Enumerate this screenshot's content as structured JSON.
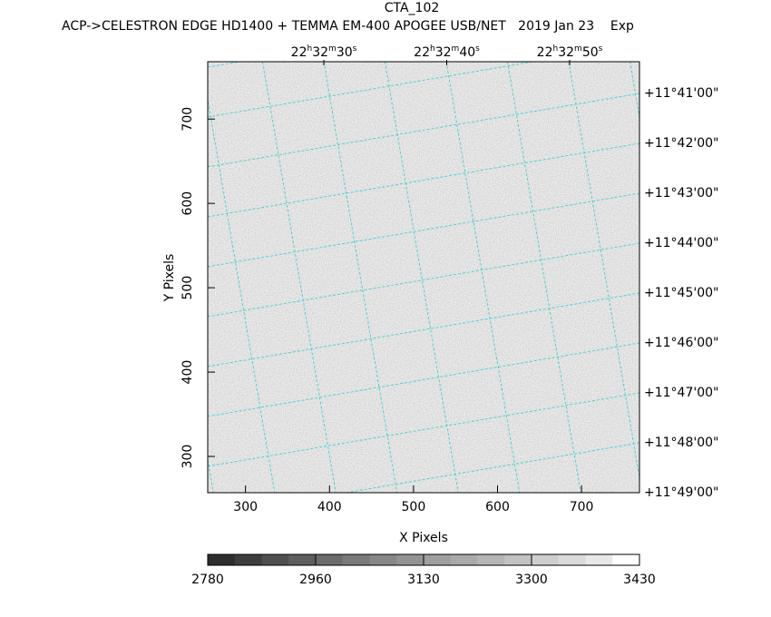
{
  "chart_data": {
    "type": "image",
    "title": "CTA_102",
    "subtitle": "ACP->CELESTRON EDGE HD1400 + TEMMA EM-400 APOGEE USB/NET   2019 Jan 23    Exp",
    "x_label": "X Pixels",
    "y_label": "Y Pixels",
    "xlim": [
      255,
      769
    ],
    "ylim": [
      257,
      768
    ],
    "xticks": [
      300,
      400,
      500,
      600,
      700
    ],
    "yticks": [
      300,
      400,
      500,
      600,
      700
    ],
    "ra_labels": [
      [
        "22",
        "h",
        "32",
        "m",
        "30",
        "s"
      ],
      [
        "22",
        "h",
        "32",
        "m",
        "40",
        "s"
      ],
      [
        "22",
        "h",
        "32",
        "m",
        "50",
        "s"
      ]
    ],
    "dec_labels": [
      "+11°41'00\"",
      "+11°42'00\"",
      "+11°43'00\"",
      "+11°44'00\"",
      "+11°45'00\"",
      "+11°46'00\"",
      "+11°47'00\"",
      "+11°48'00\"",
      "+11°49'00\""
    ],
    "grid_color": "#4fd0d0",
    "colorbar": {
      "ticks": [
        2780,
        2960,
        3130,
        3300,
        3430
      ],
      "colors": [
        "#2e2e2e",
        "#3e3e3e",
        "#4f4f4f",
        "#5e5e5e",
        "#6c6c6c",
        "#7a7a7a",
        "#878787",
        "#939393",
        "#9f9f9f",
        "#aaaaaa",
        "#b6b6b6",
        "#c2c2c2",
        "#cecece",
        "#dadada",
        "#e8e8e8",
        "#ffffff"
      ]
    }
  }
}
